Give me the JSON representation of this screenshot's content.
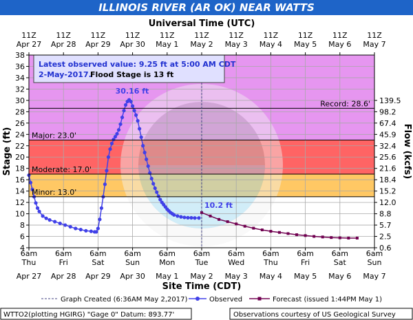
{
  "title": "ILLINOIS RIVER (AR OK) NEAR WATTS",
  "chart_data": {
    "type": "line",
    "top_axis_title": "Universal Time (UTC)",
    "top_ticks": [
      {
        "hour": "11Z",
        "date": "Apr 27"
      },
      {
        "hour": "11Z",
        "date": "Apr 28"
      },
      {
        "hour": "11Z",
        "date": "Apr 29"
      },
      {
        "hour": "11Z",
        "date": "Apr 30"
      },
      {
        "hour": "11Z",
        "date": "May 1"
      },
      {
        "hour": "11Z",
        "date": "May 2"
      },
      {
        "hour": "11Z",
        "date": "May 3"
      },
      {
        "hour": "11Z",
        "date": "May 4"
      },
      {
        "hour": "11Z",
        "date": "May 5"
      },
      {
        "hour": "11Z",
        "date": "May 6"
      },
      {
        "hour": "11Z",
        "date": "May 7"
      }
    ],
    "xlabel": "Site Time (CDT)",
    "bottom_ticks": [
      {
        "time": "6am",
        "day": "Thu",
        "date": "Apr 27"
      },
      {
        "time": "6am",
        "day": "Fri",
        "date": "Apr 28"
      },
      {
        "time": "6am",
        "day": "Sat",
        "date": "Apr 29"
      },
      {
        "time": "6am",
        "day": "Sun",
        "date": "Apr 30"
      },
      {
        "time": "6am",
        "day": "Mon",
        "date": "May 1"
      },
      {
        "time": "6am",
        "day": "Tue",
        "date": "May 2"
      },
      {
        "time": "6am",
        "day": "Wed",
        "date": "May 3"
      },
      {
        "time": "6am",
        "day": "Thu",
        "date": "May 4"
      },
      {
        "time": "6am",
        "day": "Fri",
        "date": "May 5"
      },
      {
        "time": "6am",
        "day": "Sat",
        "date": "May 6"
      },
      {
        "time": "6am",
        "day": "Sun",
        "date": "May 7"
      }
    ],
    "ylabel": "Stage (ft)",
    "ylim": [
      4,
      38
    ],
    "y_ticks": [
      4,
      6,
      8,
      10,
      12,
      14,
      16,
      18,
      20,
      22,
      24,
      26,
      28,
      30,
      32,
      34,
      36,
      38
    ],
    "y2label": "Flow (kcfs)",
    "flow_ticks": [
      {
        "stage": 4,
        "label": "0.6"
      },
      {
        "stage": 6,
        "label": "2.5"
      },
      {
        "stage": 8,
        "label": "5.7"
      },
      {
        "stage": 10,
        "label": "8.8"
      },
      {
        "stage": 12,
        "label": "12.0"
      },
      {
        "stage": 14,
        "label": "15.2"
      },
      {
        "stage": 16,
        "label": "18.4"
      },
      {
        "stage": 18,
        "label": "21.6"
      },
      {
        "stage": 20,
        "label": "25.6"
      },
      {
        "stage": 22,
        "label": "32.4"
      },
      {
        "stage": 24,
        "label": "45.9"
      },
      {
        "stage": 26,
        "label": "67.4"
      },
      {
        "stage": 28,
        "label": "98.2"
      },
      {
        "stage": 30,
        "label": "139.5"
      }
    ],
    "flood_categories": [
      {
        "label": "Minor: 13.0'",
        "from": 13,
        "to": 17,
        "color": "#ffc864"
      },
      {
        "label": "Moderate: 17.0'",
        "from": 17,
        "to": 23,
        "color": "#ff6464"
      },
      {
        "label": "Major: 23.0'",
        "from": 23,
        "to": 38,
        "color": "#e696f0"
      }
    ],
    "record": {
      "label": "Record: 28.6'",
      "value": 28.6
    },
    "info_box": {
      "line1": "Latest observed value: 9.25 ft at 5:00 AM CDT",
      "line2a": "2-May-2017.",
      "line2b": "Flood Stage is 13 ft"
    },
    "peak_label": "30.16 ft",
    "forecast_label": "10.2 ft",
    "observed_color": "#4040e8",
    "forecast_color": "#700050",
    "observed": [
      [
        0,
        16.8
      ],
      [
        0.05,
        15.5
      ],
      [
        0.1,
        14.3
      ],
      [
        0.15,
        13.0
      ],
      [
        0.2,
        11.9
      ],
      [
        0.25,
        11.0
      ],
      [
        0.3,
        10.4
      ],
      [
        0.4,
        9.6
      ],
      [
        0.5,
        9.2
      ],
      [
        0.6,
        8.9
      ],
      [
        0.75,
        8.6
      ],
      [
        0.9,
        8.3
      ],
      [
        1.05,
        8.0
      ],
      [
        1.2,
        7.7
      ],
      [
        1.35,
        7.4
      ],
      [
        1.5,
        7.2
      ],
      [
        1.65,
        7.0
      ],
      [
        1.8,
        6.9
      ],
      [
        1.9,
        6.8
      ],
      [
        1.95,
        6.8
      ],
      [
        2.0,
        7.4
      ],
      [
        2.05,
        9.0
      ],
      [
        2.1,
        11.0
      ],
      [
        2.15,
        13.0
      ],
      [
        2.2,
        15.2
      ],
      [
        2.25,
        17.6
      ],
      [
        2.3,
        20.0
      ],
      [
        2.35,
        21.4
      ],
      [
        2.4,
        22.4
      ],
      [
        2.45,
        23.1
      ],
      [
        2.5,
        23.6
      ],
      [
        2.55,
        24.1
      ],
      [
        2.6,
        24.8
      ],
      [
        2.65,
        25.8
      ],
      [
        2.7,
        27.0
      ],
      [
        2.75,
        28.2
      ],
      [
        2.8,
        29.2
      ],
      [
        2.85,
        29.8
      ],
      [
        2.9,
        30.1
      ],
      [
        2.95,
        29.8
      ],
      [
        3.0,
        29.0
      ],
      [
        3.05,
        28.2
      ],
      [
        3.1,
        27.4
      ],
      [
        3.15,
        26.4
      ],
      [
        3.2,
        25.0
      ],
      [
        3.25,
        23.5
      ],
      [
        3.3,
        22.0
      ],
      [
        3.35,
        20.8
      ],
      [
        3.4,
        19.6
      ],
      [
        3.45,
        18.4
      ],
      [
        3.5,
        17.2
      ],
      [
        3.55,
        16.2
      ],
      [
        3.6,
        15.3
      ],
      [
        3.65,
        14.5
      ],
      [
        3.7,
        13.8
      ],
      [
        3.75,
        13.1
      ],
      [
        3.8,
        12.5
      ],
      [
        3.85,
        12.0
      ],
      [
        3.9,
        11.6
      ],
      [
        3.95,
        11.2
      ],
      [
        4.0,
        10.8
      ],
      [
        4.05,
        10.5
      ],
      [
        4.1,
        10.2
      ],
      [
        4.15,
        10.0
      ],
      [
        4.2,
        9.8
      ],
      [
        4.3,
        9.6
      ],
      [
        4.4,
        9.45
      ],
      [
        4.5,
        9.35
      ],
      [
        4.6,
        9.3
      ],
      [
        4.7,
        9.28
      ],
      [
        4.8,
        9.25
      ],
      [
        4.92,
        9.25
      ]
    ],
    "forecast": [
      [
        5.0,
        10.2
      ],
      [
        5.25,
        9.6
      ],
      [
        5.5,
        9.0
      ],
      [
        5.75,
        8.6
      ],
      [
        6.0,
        8.2
      ],
      [
        6.25,
        7.8
      ],
      [
        6.5,
        7.45
      ],
      [
        6.75,
        7.15
      ],
      [
        7.0,
        6.9
      ],
      [
        7.25,
        6.7
      ],
      [
        7.5,
        6.5
      ],
      [
        7.75,
        6.3
      ],
      [
        8.0,
        6.15
      ],
      [
        8.25,
        6.0
      ],
      [
        8.5,
        5.9
      ],
      [
        8.75,
        5.8
      ],
      [
        9.0,
        5.75
      ],
      [
        9.25,
        5.7
      ],
      [
        9.5,
        5.7
      ]
    ]
  },
  "legend": {
    "created": "Graph Created (6:36AM May 2,2017)",
    "observed": "Observed",
    "forecast": "Forecast (issued 1:44PM May 1)"
  },
  "footer": {
    "left": "WTTO2(plotting HGIRG) \"Gage 0\" Datum: 893.77'",
    "right": "Observations courtesy of US Geological Survey"
  }
}
